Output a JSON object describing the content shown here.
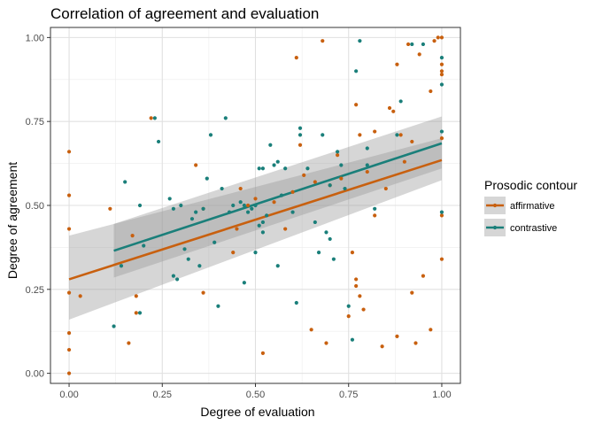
{
  "chart_data": {
    "type": "scatter",
    "title": "Correlation of agreement and evaluation",
    "xlabel": "Degree of evaluation",
    "ylabel": "Degree of agreement",
    "xlim": [
      -0.05,
      1.05
    ],
    "ylim": [
      -0.03,
      1.03
    ],
    "x_ticks": [
      0,
      0.25,
      0.5,
      0.75,
      1
    ],
    "x_tick_labels": [
      "0.00",
      "0.25",
      "0.50",
      "0.75",
      "1.00"
    ],
    "y_ticks": [
      0,
      0.25,
      0.5,
      0.75,
      1
    ],
    "y_tick_labels": [
      "0.00",
      "0.25",
      "0.50",
      "0.75",
      "1.00"
    ],
    "grid": true,
    "legend": {
      "title": "Prosodic contour",
      "position": "right"
    },
    "series": [
      {
        "name": "affirmative",
        "color": "#c8600f",
        "points": [
          [
            0,
            0.66
          ],
          [
            0,
            0.53
          ],
          [
            0,
            0.43
          ],
          [
            0,
            0.24
          ],
          [
            0,
            0.12
          ],
          [
            0,
            0.07
          ],
          [
            0,
            0
          ],
          [
            0.03,
            0.23
          ],
          [
            0.11,
            0.49
          ],
          [
            0.16,
            0.09
          ],
          [
            0.17,
            0.41
          ],
          [
            0.18,
            0.23
          ],
          [
            0.18,
            0.18
          ],
          [
            0.22,
            0.76
          ],
          [
            0.34,
            0.62
          ],
          [
            0.36,
            0.49
          ],
          [
            0.36,
            0.24
          ],
          [
            0.44,
            0.36
          ],
          [
            0.45,
            0.43
          ],
          [
            0.46,
            0.55
          ],
          [
            0.48,
            0.5
          ],
          [
            0.5,
            0.52
          ],
          [
            0.52,
            0.06
          ],
          [
            0.55,
            0.51
          ],
          [
            0.58,
            0.43
          ],
          [
            0.6,
            0.54
          ],
          [
            0.61,
            0.94
          ],
          [
            0.62,
            0.68
          ],
          [
            0.63,
            0.59
          ],
          [
            0.65,
            0.13
          ],
          [
            0.66,
            0.57
          ],
          [
            0.68,
            0.99
          ],
          [
            0.69,
            0.09
          ],
          [
            0.7,
            0.56
          ],
          [
            0.72,
            0.65
          ],
          [
            0.73,
            0.58
          ],
          [
            0.75,
            0.17
          ],
          [
            0.76,
            0.36
          ],
          [
            0.77,
            0.28
          ],
          [
            0.77,
            0.26
          ],
          [
            0.77,
            0.8
          ],
          [
            0.78,
            0.23
          ],
          [
            0.78,
            0.71
          ],
          [
            0.79,
            0.19
          ],
          [
            0.8,
            0.6
          ],
          [
            0.82,
            0.47
          ],
          [
            0.82,
            0.72
          ],
          [
            0.84,
            0.08
          ],
          [
            0.85,
            0.55
          ],
          [
            0.86,
            0.79
          ],
          [
            0.87,
            0.78
          ],
          [
            0.88,
            0.92
          ],
          [
            0.88,
            0.11
          ],
          [
            0.89,
            0.71
          ],
          [
            0.9,
            0.63
          ],
          [
            0.91,
            0.98
          ],
          [
            0.92,
            0.69
          ],
          [
            0.92,
            0.24
          ],
          [
            0.93,
            0.09
          ],
          [
            0.94,
            0.95
          ],
          [
            0.95,
            0.29
          ],
          [
            0.97,
            0.84
          ],
          [
            0.97,
            0.13
          ],
          [
            0.98,
            0.99
          ],
          [
            0.99,
            1.0
          ],
          [
            1,
            1.0
          ],
          [
            1,
            0.92
          ],
          [
            1,
            0.9
          ],
          [
            1,
            0.89
          ],
          [
            1,
            0.7
          ],
          [
            1,
            0.47
          ],
          [
            1,
            0.34
          ]
        ],
        "fit": {
          "x": [
            0,
            1
          ],
          "y": [
            0.28,
            0.635
          ],
          "ci_lower": [
            0.16,
            0.575
          ],
          "ci_upper": [
            0.41,
            0.7
          ]
        }
      },
      {
        "name": "contrastive",
        "color": "#1a7f7a",
        "points": [
          [
            0.12,
            0.14
          ],
          [
            0.14,
            0.32
          ],
          [
            0.15,
            0.57
          ],
          [
            0.19,
            0.18
          ],
          [
            0.19,
            0.5
          ],
          [
            0.2,
            0.38
          ],
          [
            0.23,
            0.76
          ],
          [
            0.24,
            0.69
          ],
          [
            0.27,
            0.52
          ],
          [
            0.28,
            0.49
          ],
          [
            0.28,
            0.29
          ],
          [
            0.29,
            0.28
          ],
          [
            0.3,
            0.5
          ],
          [
            0.31,
            0.37
          ],
          [
            0.32,
            0.34
          ],
          [
            0.33,
            0.46
          ],
          [
            0.34,
            0.48
          ],
          [
            0.35,
            0.32
          ],
          [
            0.36,
            0.49
          ],
          [
            0.37,
            0.58
          ],
          [
            0.38,
            0.71
          ],
          [
            0.39,
            0.39
          ],
          [
            0.4,
            0.2
          ],
          [
            0.41,
            0.55
          ],
          [
            0.42,
            0.76
          ],
          [
            0.43,
            0.48
          ],
          [
            0.44,
            0.5
          ],
          [
            0.46,
            0.51
          ],
          [
            0.47,
            0.27
          ],
          [
            0.47,
            0.5
          ],
          [
            0.48,
            0.48
          ],
          [
            0.49,
            0.49
          ],
          [
            0.5,
            0.36
          ],
          [
            0.5,
            0.5
          ],
          [
            0.51,
            0.61
          ],
          [
            0.51,
            0.44
          ],
          [
            0.52,
            0.42
          ],
          [
            0.52,
            0.45
          ],
          [
            0.52,
            0.61
          ],
          [
            0.53,
            0.47
          ],
          [
            0.54,
            0.68
          ],
          [
            0.55,
            0.62
          ],
          [
            0.56,
            0.32
          ],
          [
            0.56,
            0.63
          ],
          [
            0.57,
            0.53
          ],
          [
            0.58,
            0.61
          ],
          [
            0.6,
            0.48
          ],
          [
            0.61,
            0.21
          ],
          [
            0.62,
            0.73
          ],
          [
            0.62,
            0.71
          ],
          [
            0.64,
            0.61
          ],
          [
            0.66,
            0.45
          ],
          [
            0.67,
            0.36
          ],
          [
            0.68,
            0.71
          ],
          [
            0.69,
            0.42
          ],
          [
            0.7,
            0.4
          ],
          [
            0.7,
            0.56
          ],
          [
            0.71,
            0.34
          ],
          [
            0.72,
            0.66
          ],
          [
            0.73,
            0.62
          ],
          [
            0.74,
            0.55
          ],
          [
            0.75,
            0.2
          ],
          [
            0.76,
            0.1
          ],
          [
            0.77,
            0.9
          ],
          [
            0.78,
            0.99
          ],
          [
            0.8,
            0.67
          ],
          [
            0.8,
            0.62
          ],
          [
            0.82,
            0.49
          ],
          [
            0.88,
            0.71
          ],
          [
            0.89,
            0.81
          ],
          [
            0.92,
            0.98
          ],
          [
            0.95,
            0.98
          ],
          [
            1,
            0.94
          ],
          [
            1,
            0.86
          ],
          [
            1,
            0.72
          ],
          [
            1,
            0.48
          ]
        ],
        "fit": {
          "x": [
            0.12,
            1
          ],
          "y": [
            0.365,
            0.685
          ],
          "ci_lower": [
            0.285,
            0.61
          ],
          "ci_upper": [
            0.445,
            0.765
          ]
        }
      }
    ]
  }
}
